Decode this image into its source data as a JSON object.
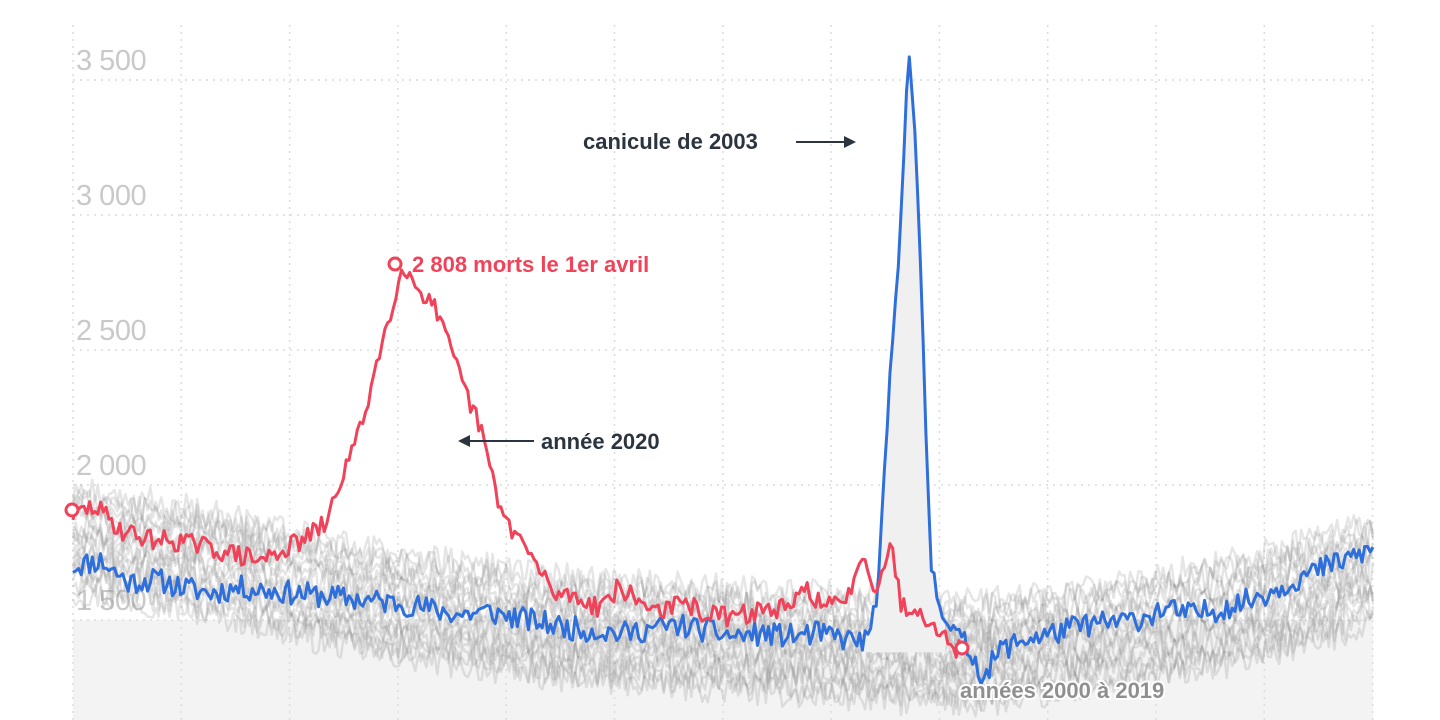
{
  "chart_data": {
    "type": "line",
    "title": "",
    "xlabel": "",
    "ylabel": "",
    "ylim": [
      1150,
      3700
    ],
    "y_ticks": [
      1500,
      2000,
      2500,
      3000,
      3500
    ],
    "y_tick_labels": [
      "1 500",
      "2 000",
      "2 500",
      "3 000",
      "3 500"
    ],
    "grid": true,
    "x_points": 365,
    "series": [
      {
        "name": "année 2020",
        "color": "#f0435a",
        "keypoints": [
          [
            0,
            1890
          ],
          [
            8,
            1920
          ],
          [
            18,
            1830
          ],
          [
            28,
            1800
          ],
          [
            40,
            1790
          ],
          [
            52,
            1760
          ],
          [
            60,
            1740
          ],
          [
            68,
            1720
          ],
          [
            76,
            1760
          ],
          [
            84,
            1800
          ],
          [
            92,
            1860
          ],
          [
            98,
            2050
          ],
          [
            104,
            2200
          ],
          [
            110,
            2450
          ],
          [
            114,
            2600
          ],
          [
            118,
            2770
          ],
          [
            120,
            2808
          ],
          [
            124,
            2740
          ],
          [
            130,
            2680
          ],
          [
            136,
            2520
          ],
          [
            142,
            2350
          ],
          [
            148,
            2200
          ],
          [
            152,
            2020
          ],
          [
            156,
            1880
          ],
          [
            162,
            1800
          ],
          [
            168,
            1700
          ],
          [
            174,
            1600
          ],
          [
            182,
            1590
          ],
          [
            190,
            1550
          ],
          [
            198,
            1620
          ],
          [
            206,
            1560
          ],
          [
            214,
            1540
          ],
          [
            222,
            1560
          ],
          [
            230,
            1520
          ],
          [
            240,
            1510
          ],
          [
            250,
            1540
          ],
          [
            260,
            1540
          ],
          [
            266,
            1620
          ],
          [
            272,
            1550
          ],
          [
            280,
            1560
          ],
          [
            286,
            1760
          ],
          [
            290,
            1620
          ],
          [
            294,
            1700
          ],
          [
            296,
            1800
          ],
          [
            300,
            1560
          ],
          [
            306,
            1530
          ],
          [
            312,
            1500
          ],
          [
            316,
            1430
          ],
          [
            322,
            1380
          ]
        ],
        "noise": 38
      },
      {
        "name": "",
        "color": "#2f6fdb",
        "keypoints": [
          [
            0,
            1700
          ],
          [
            10,
            1720
          ],
          [
            20,
            1640
          ],
          [
            30,
            1650
          ],
          [
            40,
            1620
          ],
          [
            50,
            1600
          ],
          [
            60,
            1620
          ],
          [
            70,
            1610
          ],
          [
            80,
            1600
          ],
          [
            90,
            1590
          ],
          [
            100,
            1580
          ],
          [
            110,
            1570
          ],
          [
            120,
            1560
          ],
          [
            130,
            1540
          ],
          [
            140,
            1520
          ],
          [
            150,
            1530
          ],
          [
            160,
            1510
          ],
          [
            170,
            1490
          ],
          [
            180,
            1470
          ],
          [
            190,
            1460
          ],
          [
            200,
            1450
          ],
          [
            210,
            1470
          ],
          [
            220,
            1480
          ],
          [
            230,
            1460
          ],
          [
            240,
            1440
          ],
          [
            250,
            1450
          ],
          [
            260,
            1440
          ],
          [
            270,
            1450
          ],
          [
            280,
            1430
          ],
          [
            288,
            1420
          ],
          [
            292,
            1650
          ],
          [
            296,
            2400
          ],
          [
            298,
            2650
          ],
          [
            300,
            3000
          ],
          [
            302,
            3500
          ],
          [
            303,
            3620
          ],
          [
            305,
            3300
          ],
          [
            307,
            2800
          ],
          [
            309,
            2200
          ],
          [
            311,
            1700
          ],
          [
            313,
            1600
          ],
          [
            318,
            1470
          ],
          [
            324,
            1400
          ],
          [
            330,
            1290
          ],
          [
            336,
            1390
          ],
          [
            345,
            1430
          ],
          [
            355,
            1450
          ],
          [
            365,
            1480
          ],
          [
            375,
            1490
          ],
          [
            385,
            1500
          ],
          [
            395,
            1540
          ],
          [
            405,
            1520
          ],
          [
            415,
            1540
          ],
          [
            425,
            1570
          ],
          [
            435,
            1610
          ],
          [
            445,
            1660
          ],
          [
            455,
            1700
          ],
          [
            465,
            1740
          ],
          [
            471,
            1760
          ]
        ],
        "noise": 45
      },
      {
        "name": "années 2000 à 2019",
        "color": "#8a8a8a",
        "opacity": 0.22,
        "count": 18,
        "keypoints": [
          [
            0,
            1800
          ],
          [
            30,
            1760
          ],
          [
            60,
            1700
          ],
          [
            90,
            1620
          ],
          [
            120,
            1560
          ],
          [
            150,
            1520
          ],
          [
            180,
            1480
          ],
          [
            210,
            1460
          ],
          [
            240,
            1440
          ],
          [
            270,
            1420
          ],
          [
            300,
            1400
          ],
          [
            330,
            1390
          ],
          [
            360,
            1430
          ],
          [
            390,
            1480
          ],
          [
            420,
            1540
          ],
          [
            450,
            1620
          ],
          [
            471,
            1690
          ]
        ],
        "noise": 55
      }
    ],
    "annotations": {
      "peak_2020": "2 808 morts le 1er avril",
      "year_2020": "année 2020",
      "heatwave_2003": "canicule de 2003",
      "years_range": "années 2000 à 2019"
    }
  }
}
